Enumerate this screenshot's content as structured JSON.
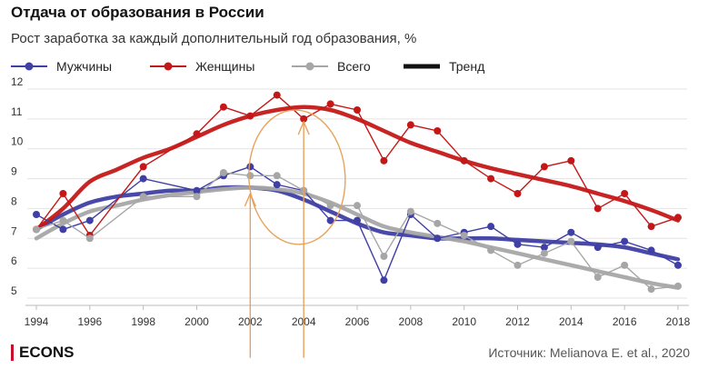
{
  "header": {
    "title": "Отдача от образования в России",
    "subtitle": "Рост заработка за каждый дополнительный год образования, %"
  },
  "legend": {
    "items": [
      {
        "label": "Мужчины",
        "color": "#3f3fa5",
        "kind": "dot-line"
      },
      {
        "label": "Женщины",
        "color": "#c41818",
        "kind": "dot-line"
      },
      {
        "label": "Всего",
        "color": "#a6a6a6",
        "kind": "dot-line"
      },
      {
        "label": "Тренд",
        "color": "#000000",
        "kind": "thick-line"
      }
    ]
  },
  "footer": {
    "brand": "ECONS",
    "source": "Источник: Melianova E. et al., 2020"
  },
  "chart_data": {
    "type": "line",
    "x": [
      1994,
      1995,
      1996,
      1997,
      1998,
      1999,
      2000,
      2001,
      2002,
      2003,
      2004,
      2005,
      2006,
      2007,
      2008,
      2009,
      2010,
      2011,
      2012,
      2013,
      2014,
      2015,
      2016,
      2017,
      2018
    ],
    "xticks": [
      "1994",
      "1996",
      "1998",
      "2000",
      "2002",
      "2004",
      "2006",
      "2008",
      "2010",
      "2012",
      "2014",
      "2016",
      "2018"
    ],
    "yticks": [
      "5",
      "6",
      "7",
      "8",
      "9",
      "10",
      "11",
      "12"
    ],
    "ylim": [
      5,
      12
    ],
    "grid": true,
    "series": [
      {
        "name": "Мужчины",
        "color": "#3f3fa5",
        "values": [
          7.8,
          7.3,
          7.6,
          null,
          9.0,
          null,
          8.6,
          9.1,
          9.4,
          8.8,
          8.6,
          7.6,
          7.6,
          5.6,
          7.8,
          7.0,
          7.2,
          7.4,
          6.8,
          6.7,
          7.2,
          6.7,
          6.9,
          6.6,
          6.1
        ]
      },
      {
        "name": "Женщины",
        "color": "#c41818",
        "values": [
          7.3,
          8.5,
          7.1,
          null,
          9.4,
          null,
          10.5,
          11.4,
          11.1,
          11.8,
          11.0,
          11.5,
          11.3,
          9.6,
          10.8,
          10.6,
          9.6,
          9.0,
          8.5,
          9.4,
          9.6,
          8.0,
          8.5,
          7.4,
          7.7
        ]
      },
      {
        "name": "Всего",
        "color": "#a6a6a6",
        "values": [
          7.3,
          7.6,
          7.0,
          null,
          8.4,
          null,
          8.4,
          9.2,
          9.1,
          9.1,
          8.6,
          8.1,
          8.1,
          6.4,
          7.9,
          7.5,
          7.1,
          6.6,
          6.1,
          6.5,
          6.9,
          5.7,
          6.1,
          5.3,
          5.4
        ]
      },
      {
        "name": "Тренд Мужчины",
        "color": "#3f3fa5",
        "trend": true,
        "values": [
          7.3,
          7.8,
          8.2,
          8.4,
          8.5,
          8.6,
          8.6,
          8.7,
          8.7,
          8.6,
          8.3,
          7.9,
          7.5,
          7.2,
          7.1,
          7.0,
          7.0,
          7.0,
          6.95,
          6.9,
          6.85,
          6.8,
          6.7,
          6.5,
          6.3
        ]
      },
      {
        "name": "Тренд Женщины",
        "color": "#c41818",
        "trend": true,
        "values": [
          7.3,
          8.0,
          8.9,
          9.3,
          9.7,
          10.0,
          10.4,
          10.8,
          11.1,
          11.3,
          11.4,
          11.3,
          11.0,
          10.6,
          10.2,
          9.9,
          9.6,
          9.35,
          9.15,
          8.95,
          8.75,
          8.5,
          8.25,
          7.95,
          7.6
        ]
      },
      {
        "name": "Тренд Всего",
        "color": "#a6a6a6",
        "trend": true,
        "values": [
          7.0,
          7.5,
          7.9,
          8.1,
          8.3,
          8.45,
          8.55,
          8.65,
          8.7,
          8.65,
          8.5,
          8.2,
          7.8,
          7.4,
          7.2,
          7.05,
          6.9,
          6.7,
          6.5,
          6.3,
          6.1,
          5.9,
          5.7,
          5.5,
          5.35
        ]
      }
    ],
    "annotations": [
      {
        "kind": "ellipse",
        "cx": 2003.75,
        "cy": 9.05,
        "rx": 1.8,
        "ry": 2.25,
        "color": "#e8a25a"
      },
      {
        "kind": "arrow",
        "x": 2002,
        "y1": 3.0,
        "y2": 8.5,
        "color": "#e8a25a"
      },
      {
        "kind": "arrow",
        "x": 2004,
        "y1": 3.0,
        "y2": 10.9,
        "color": "#e8a25a"
      }
    ]
  }
}
